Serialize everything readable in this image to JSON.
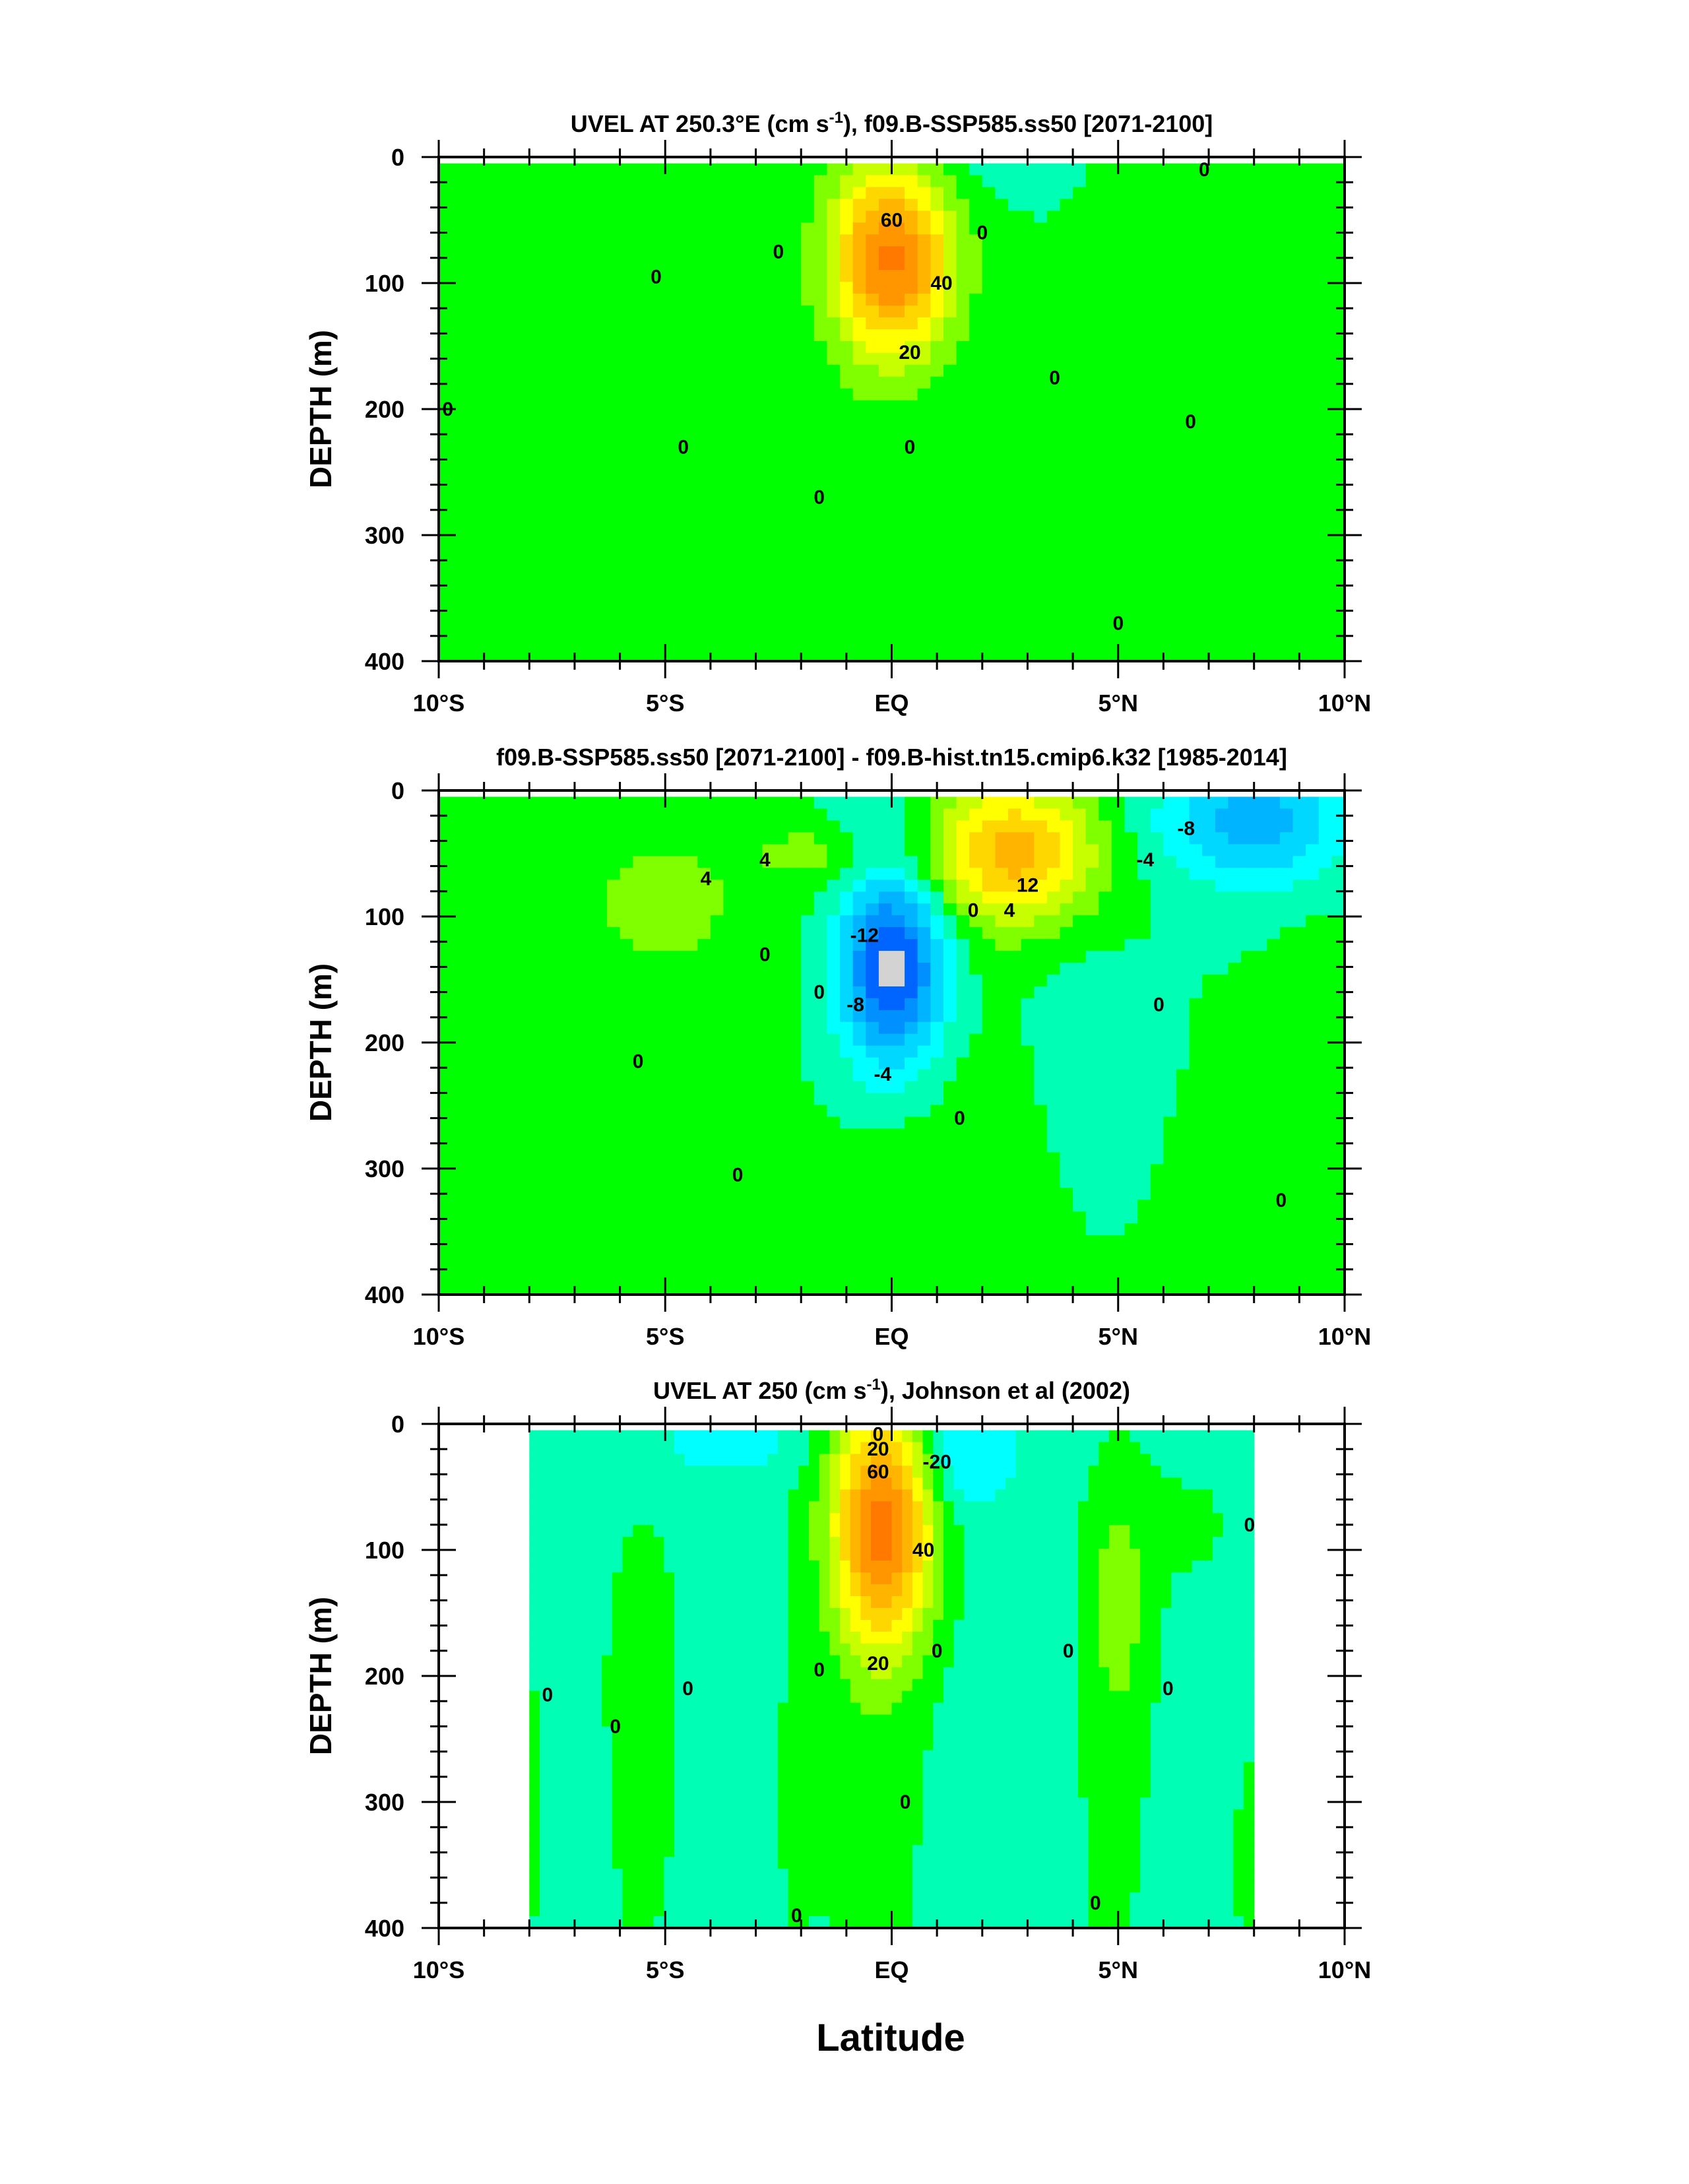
{
  "figure": {
    "xlabel": "Latitude"
  },
  "chart_data": [
    {
      "type": "heatmap",
      "title": "UVEL AT 250.3°E (cm s-1), f09.B-SSP585.ss50 [2071-2100]",
      "title_main": "UVEL AT 250.3°E (cm s",
      "title_sup": "-1",
      "title_rest": "), f09.B-SSP585.ss50 [2071-2100]",
      "ylabel": "DEPTH (m)",
      "xlim": [
        -10,
        10
      ],
      "ylim": [
        400,
        0
      ],
      "x_ticks": [
        -10,
        -5,
        0,
        5,
        10
      ],
      "x_tick_labels": [
        "10°S",
        "5°S",
        "EQ",
        "5°N",
        "10°N"
      ],
      "y_ticks": [
        0,
        100,
        200,
        300,
        400
      ],
      "y_tick_labels": [
        "0",
        "100",
        "200",
        "300",
        "400"
      ],
      "data_extent": {
        "x": [
          -10,
          10
        ],
        "depth": [
          5,
          400
        ]
      },
      "background_level": 0,
      "features": [
        {
          "lat": 0.0,
          "depth": 80,
          "peak": 72,
          "sx": 0.95,
          "sy": 55
        },
        {
          "lat": 5.2,
          "depth": 80,
          "peak": 5,
          "sx": 0.6,
          "sy": 45
        },
        {
          "lat": -4.5,
          "depth": 280,
          "peak": 3,
          "sx": 3.5,
          "sy": 150
        },
        {
          "lat": 1.0,
          "depth": 320,
          "peak": 3,
          "sx": 2.0,
          "sy": 100
        },
        {
          "lat": 1.5,
          "depth": 10,
          "peak": -6,
          "sx": 1.2,
          "sy": 20
        },
        {
          "lat": 9.8,
          "depth": 320,
          "peak": 4,
          "sx": 0.4,
          "sy": 80
        }
      ],
      "contour_labels": [
        {
          "text": "60",
          "lat": 0.0,
          "depth": 50
        },
        {
          "text": "40",
          "lat": 1.1,
          "depth": 100
        },
        {
          "text": "20",
          "lat": 0.4,
          "depth": 155
        },
        {
          "text": "0",
          "lat": -2.5,
          "depth": 75
        },
        {
          "text": "0",
          "lat": 2.0,
          "depth": 60
        },
        {
          "text": "0",
          "lat": -5.2,
          "depth": 95
        },
        {
          "text": "0",
          "lat": 6.9,
          "depth": 10
        },
        {
          "text": "0",
          "lat": 3.6,
          "depth": 175
        },
        {
          "text": "0",
          "lat": 6.6,
          "depth": 210
        },
        {
          "text": "0",
          "lat": -9.8,
          "depth": 200
        },
        {
          "text": "0",
          "lat": -4.6,
          "depth": 230
        },
        {
          "text": "0",
          "lat": 0.4,
          "depth": 230
        },
        {
          "text": "0",
          "lat": -1.6,
          "depth": 270
        },
        {
          "text": "0",
          "lat": 5.0,
          "depth": 370
        }
      ]
    },
    {
      "type": "heatmap",
      "title": "f09.B-SSP585.ss50 [2071-2100] - f09.B-hist.tn15.cmip6.k32 [1985-2014]",
      "title_main": "f09.B-SSP585.ss50 [2071-2100] - f09.B-hist.tn15.cmip6.k32 [1985-2014]",
      "title_sup": "",
      "title_rest": "",
      "ylabel": "DEPTH (m)",
      "xlim": [
        -10,
        10
      ],
      "ylim": [
        400,
        0
      ],
      "x_ticks": [
        -10,
        -5,
        0,
        5,
        10
      ],
      "x_tick_labels": [
        "10°S",
        "5°S",
        "EQ",
        "5°N",
        "10°N"
      ],
      "y_ticks": [
        0,
        100,
        200,
        300,
        400
      ],
      "y_tick_labels": [
        "0",
        "100",
        "200",
        "300",
        "400"
      ],
      "data_extent": {
        "x": [
          -10,
          10
        ],
        "depth": [
          5,
          400
        ]
      },
      "background_level": 0,
      "features": [
        {
          "lat": 0.0,
          "depth": 140,
          "peak": -26,
          "sx": 0.8,
          "sy": 55
        },
        {
          "lat": 2.7,
          "depth": 50,
          "peak": 22,
          "sx": 1.3,
          "sy": 40
        },
        {
          "lat": 8.0,
          "depth": 25,
          "peak": -14,
          "sx": 1.5,
          "sy": 35
        },
        {
          "lat": -5.0,
          "depth": 90,
          "peak": 5,
          "sx": 0.9,
          "sy": 30
        },
        {
          "lat": -1.5,
          "depth": 50,
          "peak": 5,
          "sx": 1.2,
          "sy": 20
        },
        {
          "lat": -5.5,
          "depth": 90,
          "peak": 2.2,
          "sx": 3.0,
          "sy": 70
        },
        {
          "lat": 2.0,
          "depth": 320,
          "peak": 3,
          "sx": 2.0,
          "sy": 90
        },
        {
          "lat": 4.2,
          "depth": 240,
          "peak": -3,
          "sx": 0.9,
          "sy": 90
        },
        {
          "lat": 9.5,
          "depth": 300,
          "peak": 2.5,
          "sx": 0.8,
          "sy": 130
        },
        {
          "lat": -0.5,
          "depth": 20,
          "peak": -4,
          "sx": 0.7,
          "sy": 20
        }
      ],
      "contour_labels": [
        {
          "text": "4",
          "lat": -4.1,
          "depth": 70
        },
        {
          "text": "4",
          "lat": -2.8,
          "depth": 55
        },
        {
          "text": "12",
          "lat": 3.0,
          "depth": 75
        },
        {
          "text": "4",
          "lat": 2.6,
          "depth": 95
        },
        {
          "text": "0",
          "lat": 1.8,
          "depth": 95
        },
        {
          "text": "-4",
          "lat": 5.6,
          "depth": 55
        },
        {
          "text": "-8",
          "lat": 6.5,
          "depth": 30
        },
        {
          "text": "-12",
          "lat": -0.6,
          "depth": 115
        },
        {
          "text": "-8",
          "lat": -0.8,
          "depth": 170
        },
        {
          "text": "-4",
          "lat": -0.2,
          "depth": 225
        },
        {
          "text": "0",
          "lat": -2.8,
          "depth": 130
        },
        {
          "text": "0",
          "lat": -1.6,
          "depth": 160
        },
        {
          "text": "0",
          "lat": 5.9,
          "depth": 170
        },
        {
          "text": "0",
          "lat": -5.6,
          "depth": 215
        },
        {
          "text": "0",
          "lat": 1.5,
          "depth": 260
        },
        {
          "text": "0",
          "lat": -3.4,
          "depth": 305
        },
        {
          "text": "0",
          "lat": 8.6,
          "depth": 325
        }
      ]
    },
    {
      "type": "heatmap",
      "title": "UVEL AT 250 (cm s-1), Johnson et al (2002)",
      "title_main": "UVEL AT 250 (cm s",
      "title_sup": "-1",
      "title_rest": "), Johnson et al (2002)",
      "ylabel": "DEPTH (m)",
      "xlim": [
        -10,
        10
      ],
      "ylim": [
        400,
        0
      ],
      "x_ticks": [
        -10,
        -5,
        0,
        5,
        10
      ],
      "x_tick_labels": [
        "10°S",
        "5°S",
        "EQ",
        "5°N",
        "10°N"
      ],
      "y_ticks": [
        0,
        100,
        200,
        300,
        400
      ],
      "y_tick_labels": [
        "0",
        "100",
        "200",
        "300",
        "400"
      ],
      "data_extent": {
        "x": [
          -8,
          8
        ],
        "depth": [
          5,
          400
        ]
      },
      "background_level": -3,
      "features": [
        {
          "lat": -0.2,
          "depth": 80,
          "peak": 78,
          "sx": 0.8,
          "sy": 70
        },
        {
          "lat": -0.4,
          "depth": 300,
          "peak": 7,
          "sx": 0.9,
          "sy": 120
        },
        {
          "lat": 5.0,
          "depth": 140,
          "peak": 16,
          "sx": 0.5,
          "sy": 70
        },
        {
          "lat": 4.8,
          "depth": 300,
          "peak": 6,
          "sx": 0.6,
          "sy": 120
        },
        {
          "lat": -5.5,
          "depth": 190,
          "peak": 9,
          "sx": 0.5,
          "sy": 75
        },
        {
          "lat": -5.5,
          "depth": 340,
          "peak": 4,
          "sx": 0.6,
          "sy": 90
        },
        {
          "lat": -7.9,
          "depth": 300,
          "peak": 4,
          "sx": 0.3,
          "sy": 120
        },
        {
          "lat": 1.5,
          "depth": 25,
          "peak": -20,
          "sx": 0.8,
          "sy": 30
        },
        {
          "lat": -3.5,
          "depth": 15,
          "peak": -12,
          "sx": 1.3,
          "sy": 20
        },
        {
          "lat": 6.5,
          "depth": 80,
          "peak": 4,
          "sx": 1.0,
          "sy": 40
        },
        {
          "lat": -2.2,
          "depth": 300,
          "peak": 3,
          "sx": 0.4,
          "sy": 150
        },
        {
          "lat": 2.5,
          "depth": 250,
          "peak": -3,
          "sx": 1.3,
          "sy": 150
        },
        {
          "lat": 8.0,
          "depth": 350,
          "peak": 5,
          "sx": 0.4,
          "sy": 80
        }
      ],
      "contour_labels": [
        {
          "text": "0",
          "lat": -0.3,
          "depth": 8
        },
        {
          "text": "20",
          "lat": -0.3,
          "depth": 20
        },
        {
          "text": "-20",
          "lat": 1.0,
          "depth": 30
        },
        {
          "text": "60",
          "lat": -0.3,
          "depth": 38
        },
        {
          "text": "40",
          "lat": 0.7,
          "depth": 100
        },
        {
          "text": "20",
          "lat": -0.3,
          "depth": 190
        },
        {
          "text": "0",
          "lat": 7.9,
          "depth": 80
        },
        {
          "text": "0",
          "lat": -1.6,
          "depth": 195
        },
        {
          "text": "0",
          "lat": 1.0,
          "depth": 180
        },
        {
          "text": "0",
          "lat": 3.9,
          "depth": 180
        },
        {
          "text": "0",
          "lat": 6.1,
          "depth": 210
        },
        {
          "text": "0",
          "lat": -7.6,
          "depth": 215
        },
        {
          "text": "0",
          "lat": -6.1,
          "depth": 240
        },
        {
          "text": "0",
          "lat": -4.5,
          "depth": 210
        },
        {
          "text": "0",
          "lat": 0.3,
          "depth": 300
        },
        {
          "text": "0",
          "lat": -2.1,
          "depth": 390
        },
        {
          "text": "0",
          "lat": 4.5,
          "depth": 380
        }
      ]
    }
  ]
}
